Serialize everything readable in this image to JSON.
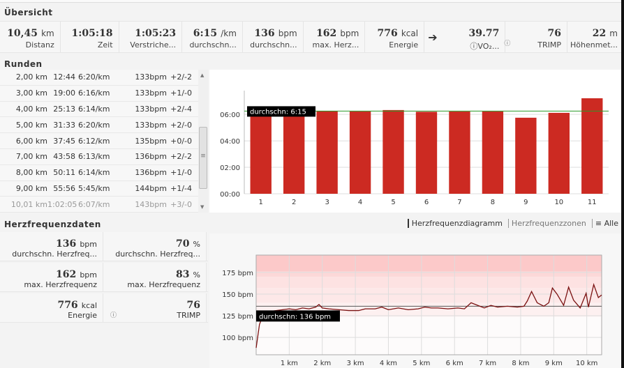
{
  "overview": {
    "title": "Übersicht",
    "stats": [
      {
        "value": "10,45",
        "unit": "km",
        "label": "Distanz"
      },
      {
        "value": "1:05:18",
        "unit": "",
        "label": "Zeit"
      },
      {
        "value": "1:05:23",
        "unit": "",
        "label": "Verstriche..."
      },
      {
        "value": "6:15",
        "unit": "/km",
        "label": "durchschn..."
      },
      {
        "value": "136",
        "unit": "bpm",
        "label": "durchschn..."
      },
      {
        "value": "162",
        "unit": "bpm",
        "label": "max. Herz..."
      },
      {
        "value": "776",
        "unit": "kcal",
        "label": "Energie"
      },
      {
        "value": "39.77",
        "unit": "",
        "label": "ⓘVO₂..."
      },
      {
        "value": "76",
        "unit": "",
        "label": "TRIMP"
      },
      {
        "value": "22",
        "unit": "m",
        "label": "Höhenmet..."
      }
    ]
  },
  "laps": {
    "title": "Runden",
    "rows": [
      [
        "2,00 km",
        "12:44",
        "6:20/km",
        "133bpm",
        "+2/-2"
      ],
      [
        "3,00 km",
        "19:00",
        "6:16/km",
        "133bpm",
        "+1/-0"
      ],
      [
        "4,00 km",
        "25:13",
        "6:14/km",
        "133bpm",
        "+2/-4"
      ],
      [
        "5,00 km",
        "31:33",
        "6:20/km",
        "133bpm",
        "+2/-0"
      ],
      [
        "6,00 km",
        "37:45",
        "6:12/km",
        "135bpm",
        "+0/-0"
      ],
      [
        "7,00 km",
        "43:58",
        "6:13/km",
        "136bpm",
        "+2/-2"
      ],
      [
        "8,00 km",
        "50:11",
        "6:14/km",
        "136bpm",
        "+1/-0"
      ],
      [
        "9,00 km",
        "55:56",
        "5:45/km",
        "144bpm",
        "+1/-4"
      ],
      [
        "10,01 km",
        "1:02:05",
        "6:07/km",
        "143bpm",
        "+3/-0"
      ]
    ]
  },
  "heart": {
    "title": "Herzfrequenzdaten",
    "tabs": [
      "Herzfrequenzdiagramm",
      "Herzfrequenzzonen",
      "Alle"
    ],
    "stats": [
      [
        {
          "value": "136",
          "unit": "bpm",
          "label": "durchschn. Herzfreq..."
        },
        {
          "value": "70",
          "unit": "%",
          "label": "durchschn. Herzfreq..."
        }
      ],
      [
        {
          "value": "162",
          "unit": "bpm",
          "label": "max. Herzfrequenz"
        },
        {
          "value": "83",
          "unit": "%",
          "label": "max. Herzfrequenz"
        }
      ],
      [
        {
          "value": "776",
          "unit": "kcal",
          "label": "Energie"
        },
        {
          "value": "76",
          "unit": "",
          "label": "TRIMP"
        }
      ]
    ]
  },
  "chart_data": [
    {
      "type": "bar",
      "title": "",
      "categories": [
        "1",
        "2",
        "3",
        "4",
        "5",
        "6",
        "7",
        "8",
        "9",
        "10",
        "11"
      ],
      "values_min": [
        6.4,
        6.33,
        6.27,
        6.23,
        6.33,
        6.2,
        6.22,
        6.23,
        5.75,
        6.12,
        7.22
      ],
      "yticks": [
        "00:00",
        "02:00",
        "04:00",
        "06:00"
      ],
      "ylim": [
        0,
        7.8
      ],
      "avg_line": 6.25,
      "avg_label": "durchschn: 6:15",
      "color": "#cc2a22",
      "avg_color": "#2a9a2a"
    },
    {
      "type": "line",
      "xlabel": "",
      "ylabel": "",
      "xticks": [
        "1 km",
        "2 km",
        "3 km",
        "4 km",
        "5 km",
        "6 km",
        "7 km",
        "8 km",
        "9 km",
        "10 km"
      ],
      "yticks": [
        "100 bpm",
        "125 bpm",
        "150 bpm",
        "175 bpm"
      ],
      "xlim": [
        0,
        10.45
      ],
      "ylim": [
        80,
        195
      ],
      "avg_line": 136,
      "avg_label": "durchschn: 136 bpm",
      "x": [
        0,
        0.1,
        0.2,
        0.4,
        0.6,
        0.8,
        1.0,
        1.2,
        1.4,
        1.6,
        1.8,
        1.9,
        2.0,
        2.2,
        2.5,
        2.8,
        3.1,
        3.3,
        3.6,
        3.8,
        4.0,
        4.3,
        4.6,
        4.9,
        5.1,
        5.3,
        5.5,
        5.8,
        6.1,
        6.3,
        6.5,
        6.7,
        6.9,
        7.1,
        7.3,
        7.6,
        7.9,
        8.1,
        8.2,
        8.33,
        8.5,
        8.7,
        8.85,
        8.96,
        9.1,
        9.3,
        9.45,
        9.6,
        9.8,
        9.98,
        10.05,
        10.21,
        10.35,
        10.45
      ],
      "y": [
        88,
        115,
        125,
        130,
        131,
        132,
        133,
        132,
        134,
        133,
        135,
        138,
        134,
        133,
        132,
        131,
        131,
        133,
        133,
        135,
        132,
        134,
        132,
        133,
        135,
        134,
        134,
        133,
        134,
        133,
        140,
        137,
        134,
        137,
        135,
        136,
        135,
        136,
        142,
        153,
        140,
        136,
        140,
        157,
        150,
        137,
        158,
        143,
        134,
        151,
        135,
        161,
        146,
        149
      ],
      "color": "#7a1010"
    }
  ]
}
